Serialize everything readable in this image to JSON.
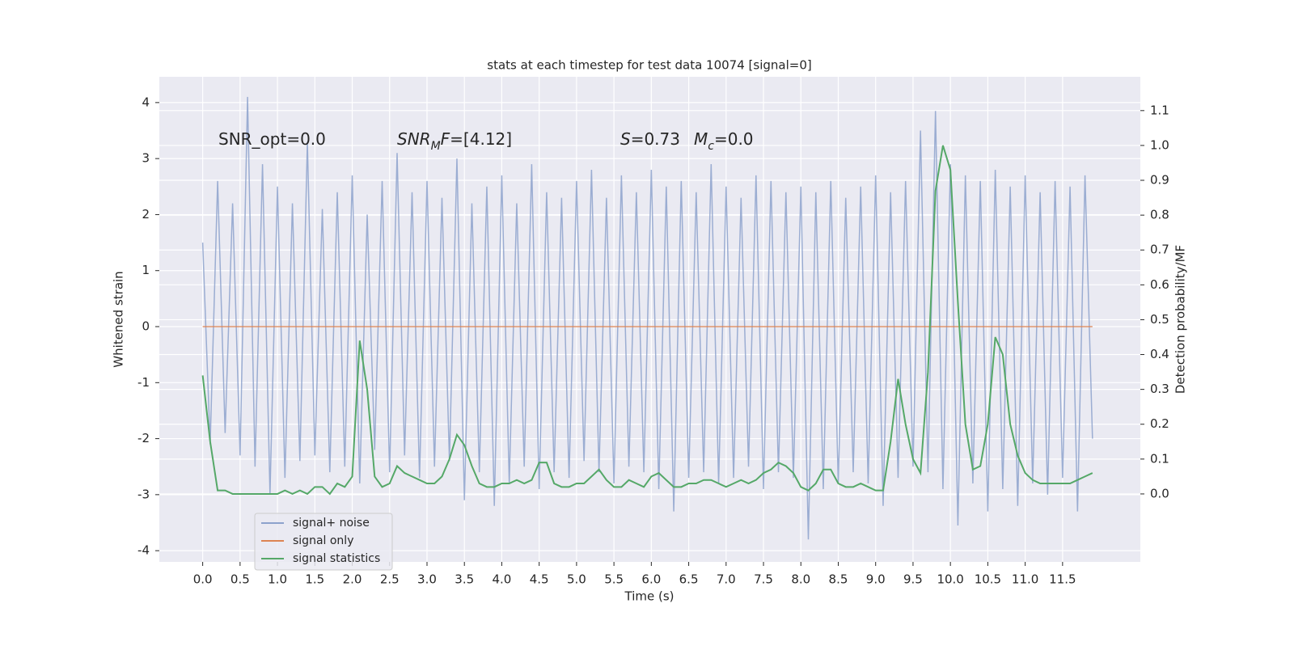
{
  "chart_data": {
    "type": "line",
    "title": "stats at each timestep for test data 10074 [signal=0]",
    "xlabel": "Time (s)",
    "ylabel": "Whitened strain",
    "y2label": "Detection probability/MF",
    "annotations": [
      {
        "parts": [
          {
            "text": "SNR_opt=0.0"
          }
        ]
      },
      {
        "parts": [
          {
            "text": "SNR",
            "italic": true
          },
          {
            "text": "M",
            "italic": true,
            "sub": true
          },
          {
            "text": "F",
            "italic": true
          },
          {
            "text": "=[4.12]"
          }
        ]
      },
      {
        "parts": [
          {
            "text": "S",
            "italic": true
          },
          {
            "text": "=0.73"
          }
        ]
      },
      {
        "parts": [
          {
            "text": "M",
            "italic": true
          },
          {
            "text": "c",
            "italic": true,
            "sub": true
          },
          {
            "text": "=0.0"
          }
        ]
      }
    ],
    "x": [
      0,
      0.1,
      0.2,
      0.3,
      0.4,
      0.5,
      0.6,
      0.7,
      0.8,
      0.9,
      1,
      1.1,
      1.2,
      1.3,
      1.4,
      1.5,
      1.6,
      1.7,
      1.8,
      1.9,
      2,
      2.1,
      2.2,
      2.3,
      2.4,
      2.5,
      2.6,
      2.7,
      2.8,
      2.9,
      3,
      3.1,
      3.2,
      3.3,
      3.4,
      3.5,
      3.6,
      3.7,
      3.8,
      3.9,
      4,
      4.1,
      4.2,
      4.3,
      4.4,
      4.5,
      4.6,
      4.7,
      4.8,
      4.9,
      5,
      5.1,
      5.2,
      5.3,
      5.4,
      5.5,
      5.6,
      5.7,
      5.8,
      5.9,
      6,
      6.1,
      6.2,
      6.3,
      6.4,
      6.5,
      6.6,
      6.7,
      6.8,
      6.9,
      7,
      7.1,
      7.2,
      7.3,
      7.4,
      7.5,
      7.6,
      7.7,
      7.8,
      7.9,
      8,
      8.1,
      8.2,
      8.3,
      8.4,
      8.5,
      8.6,
      8.7,
      8.8,
      8.9,
      9,
      9.1,
      9.2,
      9.3,
      9.4,
      9.5,
      9.6,
      9.7,
      9.8,
      9.9,
      10,
      10.1,
      10.2,
      10.3,
      10.4,
      10.5,
      10.6,
      10.7,
      10.8,
      10.9,
      11,
      11.1,
      11.2,
      11.3,
      11.4,
      11.5,
      11.6,
      11.7,
      11.8,
      11.9
    ],
    "series": [
      {
        "name": "signal+ noise",
        "color": "#8da2cc",
        "axis": "y",
        "values": [
          1.5,
          -2.1,
          2.6,
          -1.9,
          2.2,
          -2.3,
          4.1,
          -2.5,
          2.9,
          -3.0,
          2.5,
          -2.7,
          2.2,
          -2.4,
          3.3,
          -2.3,
          2.1,
          -2.6,
          2.4,
          -2.5,
          2.7,
          -2.8,
          2.0,
          -2.2,
          2.6,
          -2.6,
          3.1,
          -2.3,
          2.4,
          -2.7,
          2.6,
          -2.5,
          2.3,
          -2.4,
          3.0,
          -3.1,
          2.2,
          -2.6,
          2.5,
          -3.2,
          2.7,
          -2.8,
          2.2,
          -2.5,
          2.9,
          -2.9,
          2.4,
          -2.6,
          2.3,
          -2.7,
          2.6,
          -2.4,
          2.8,
          -2.6,
          2.3,
          -2.8,
          2.7,
          -2.5,
          2.4,
          -2.6,
          2.8,
          -2.9,
          2.5,
          -3.3,
          2.6,
          -2.7,
          2.4,
          -2.6,
          2.9,
          -2.8,
          2.5,
          -2.7,
          2.3,
          -2.5,
          2.7,
          -2.9,
          2.6,
          -2.6,
          2.4,
          -2.7,
          2.5,
          -3.8,
          2.4,
          -2.9,
          2.6,
          -2.8,
          2.3,
          -2.6,
          2.5,
          -2.8,
          2.7,
          -3.2,
          2.4,
          -2.7,
          2.6,
          -2.5,
          3.5,
          -2.6,
          3.85,
          -2.9,
          2.9,
          -3.55,
          2.7,
          -2.8,
          2.6,
          -3.3,
          2.8,
          -2.9,
          2.5,
          -3.2,
          2.7,
          -2.8,
          2.4,
          -3.0,
          2.6,
          -2.7,
          2.5,
          -3.3,
          2.7,
          -2.0
        ]
      },
      {
        "name": "signal only",
        "color": "#dd8452",
        "axis": "y",
        "values": [
          0,
          0,
          0,
          0,
          0,
          0,
          0,
          0,
          0,
          0,
          0,
          0,
          0,
          0,
          0,
          0,
          0,
          0,
          0,
          0,
          0,
          0,
          0,
          0,
          0,
          0,
          0,
          0,
          0,
          0,
          0,
          0,
          0,
          0,
          0,
          0,
          0,
          0,
          0,
          0,
          0,
          0,
          0,
          0,
          0,
          0,
          0,
          0,
          0,
          0,
          0,
          0,
          0,
          0,
          0,
          0,
          0,
          0,
          0,
          0,
          0,
          0,
          0,
          0,
          0,
          0,
          0,
          0,
          0,
          0,
          0,
          0,
          0,
          0,
          0,
          0,
          0,
          0,
          0,
          0,
          0,
          0,
          0,
          0,
          0,
          0,
          0,
          0,
          0,
          0,
          0,
          0,
          0,
          0,
          0,
          0,
          0,
          0,
          0,
          0,
          0,
          0,
          0,
          0,
          0,
          0,
          0,
          0,
          0,
          0,
          0,
          0,
          0,
          0,
          0,
          0,
          0,
          0,
          0,
          0
        ]
      },
      {
        "name": "signal statistics",
        "color": "#55a868",
        "axis": "y2",
        "values": [
          0.34,
          0.15,
          0.01,
          0.01,
          0.0,
          0.0,
          0.0,
          0.0,
          0.0,
          0.0,
          0.0,
          0.01,
          0.0,
          0.01,
          0.0,
          0.02,
          0.02,
          0.0,
          0.03,
          0.02,
          0.05,
          0.44,
          0.3,
          0.05,
          0.02,
          0.03,
          0.08,
          0.06,
          0.05,
          0.04,
          0.03,
          0.03,
          0.05,
          0.1,
          0.17,
          0.14,
          0.08,
          0.03,
          0.02,
          0.02,
          0.03,
          0.03,
          0.04,
          0.03,
          0.04,
          0.09,
          0.09,
          0.03,
          0.02,
          0.02,
          0.03,
          0.03,
          0.05,
          0.07,
          0.04,
          0.02,
          0.02,
          0.04,
          0.03,
          0.02,
          0.05,
          0.06,
          0.04,
          0.02,
          0.02,
          0.03,
          0.03,
          0.04,
          0.04,
          0.03,
          0.02,
          0.03,
          0.04,
          0.03,
          0.04,
          0.06,
          0.07,
          0.09,
          0.08,
          0.06,
          0.02,
          0.01,
          0.03,
          0.07,
          0.07,
          0.03,
          0.02,
          0.02,
          0.03,
          0.02,
          0.01,
          0.01,
          0.15,
          0.33,
          0.2,
          0.1,
          0.06,
          0.35,
          0.87,
          1.0,
          0.93,
          0.55,
          0.2,
          0.07,
          0.08,
          0.2,
          0.45,
          0.4,
          0.2,
          0.11,
          0.06,
          0.04,
          0.03,
          0.03,
          0.03,
          0.03,
          0.03,
          0.04,
          0.05,
          0.06
        ]
      }
    ],
    "xlim": [
      -0.58,
      12.54
    ],
    "ylim": [
      -4.2,
      4.46
    ],
    "y2lim": [
      -0.195,
      1.197
    ],
    "xticks": [
      {
        "value": 0,
        "label": "0.0"
      },
      {
        "value": 0.5,
        "label": "0.5"
      },
      {
        "value": 1,
        "label": "1.0"
      },
      {
        "value": 1.5,
        "label": "1.5"
      },
      {
        "value": 2,
        "label": "2.0"
      },
      {
        "value": 2.5,
        "label": "2.5"
      },
      {
        "value": 3,
        "label": "3.0"
      },
      {
        "value": 3.5,
        "label": "3.5"
      },
      {
        "value": 4,
        "label": "4.0"
      },
      {
        "value": 4.5,
        "label": "4.5"
      },
      {
        "value": 5,
        "label": "5.0"
      },
      {
        "value": 5.5,
        "label": "5.5"
      },
      {
        "value": 6,
        "label": "6.0"
      },
      {
        "value": 6.5,
        "label": "6.5"
      },
      {
        "value": 7,
        "label": "7.0"
      },
      {
        "value": 7.5,
        "label": "7.5"
      },
      {
        "value": 8,
        "label": "8.0"
      },
      {
        "value": 8.5,
        "label": "8.5"
      },
      {
        "value": 9,
        "label": "9.0"
      },
      {
        "value": 9.5,
        "label": "9.5"
      },
      {
        "value": 10,
        "label": "10.0"
      },
      {
        "value": 10.5,
        "label": "10.5"
      },
      {
        "value": 11,
        "label": "11.0"
      },
      {
        "value": 11.5,
        "label": "11.5"
      }
    ],
    "yticks": [
      -4,
      -3,
      -2,
      -1,
      0,
      1,
      2,
      3,
      4
    ],
    "y2ticks": [
      {
        "value": 0,
        "label": "0.0"
      },
      {
        "value": 0.1,
        "label": "0.1"
      },
      {
        "value": 0.2,
        "label": "0.2"
      },
      {
        "value": 0.3,
        "label": "0.3"
      },
      {
        "value": 0.4,
        "label": "0.4"
      },
      {
        "value": 0.5,
        "label": "0.5"
      },
      {
        "value": 0.6,
        "label": "0.6"
      },
      {
        "value": 0.7,
        "label": "0.7"
      },
      {
        "value": 0.8,
        "label": "0.8"
      },
      {
        "value": 0.9,
        "label": "0.9"
      },
      {
        "value": 1,
        "label": "1.0"
      },
      {
        "value": 1.1,
        "label": "1.1"
      }
    ],
    "grid": true,
    "background": "#eaeaf2",
    "legend": "lower left"
  }
}
